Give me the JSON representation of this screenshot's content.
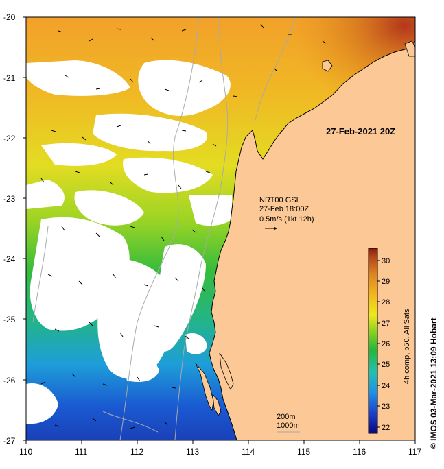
{
  "map": {
    "date_label": "27-Feb-2021 20Z",
    "current_info": {
      "line1": "NRT00 GSL",
      "line2": "27-Feb 18:00Z",
      "line3": "0.5m/s (1kt 12h)"
    },
    "depth_legend": {
      "line1": "200m",
      "line2": "1000m"
    },
    "colorbar": {
      "label": "4h comp, p50, All Sats",
      "ticks": [
        "22",
        "23",
        "24",
        "25",
        "26",
        "27",
        "28",
        "29",
        "30"
      ]
    },
    "credit": "© IMOS 03-Mar-2021 13:09 Hobart",
    "x_axis_ticks": [
      "110",
      "111",
      "112",
      "113",
      "114",
      "115",
      "116",
      "117"
    ],
    "y_axis_ticks": [
      "-20",
      "-21",
      "-22",
      "-23",
      "-24",
      "-25",
      "-26",
      "-27"
    ],
    "colors": {
      "land": "#fbc896",
      "no_data": "#ffffff",
      "isobath": "#a9a9a9"
    }
  }
}
